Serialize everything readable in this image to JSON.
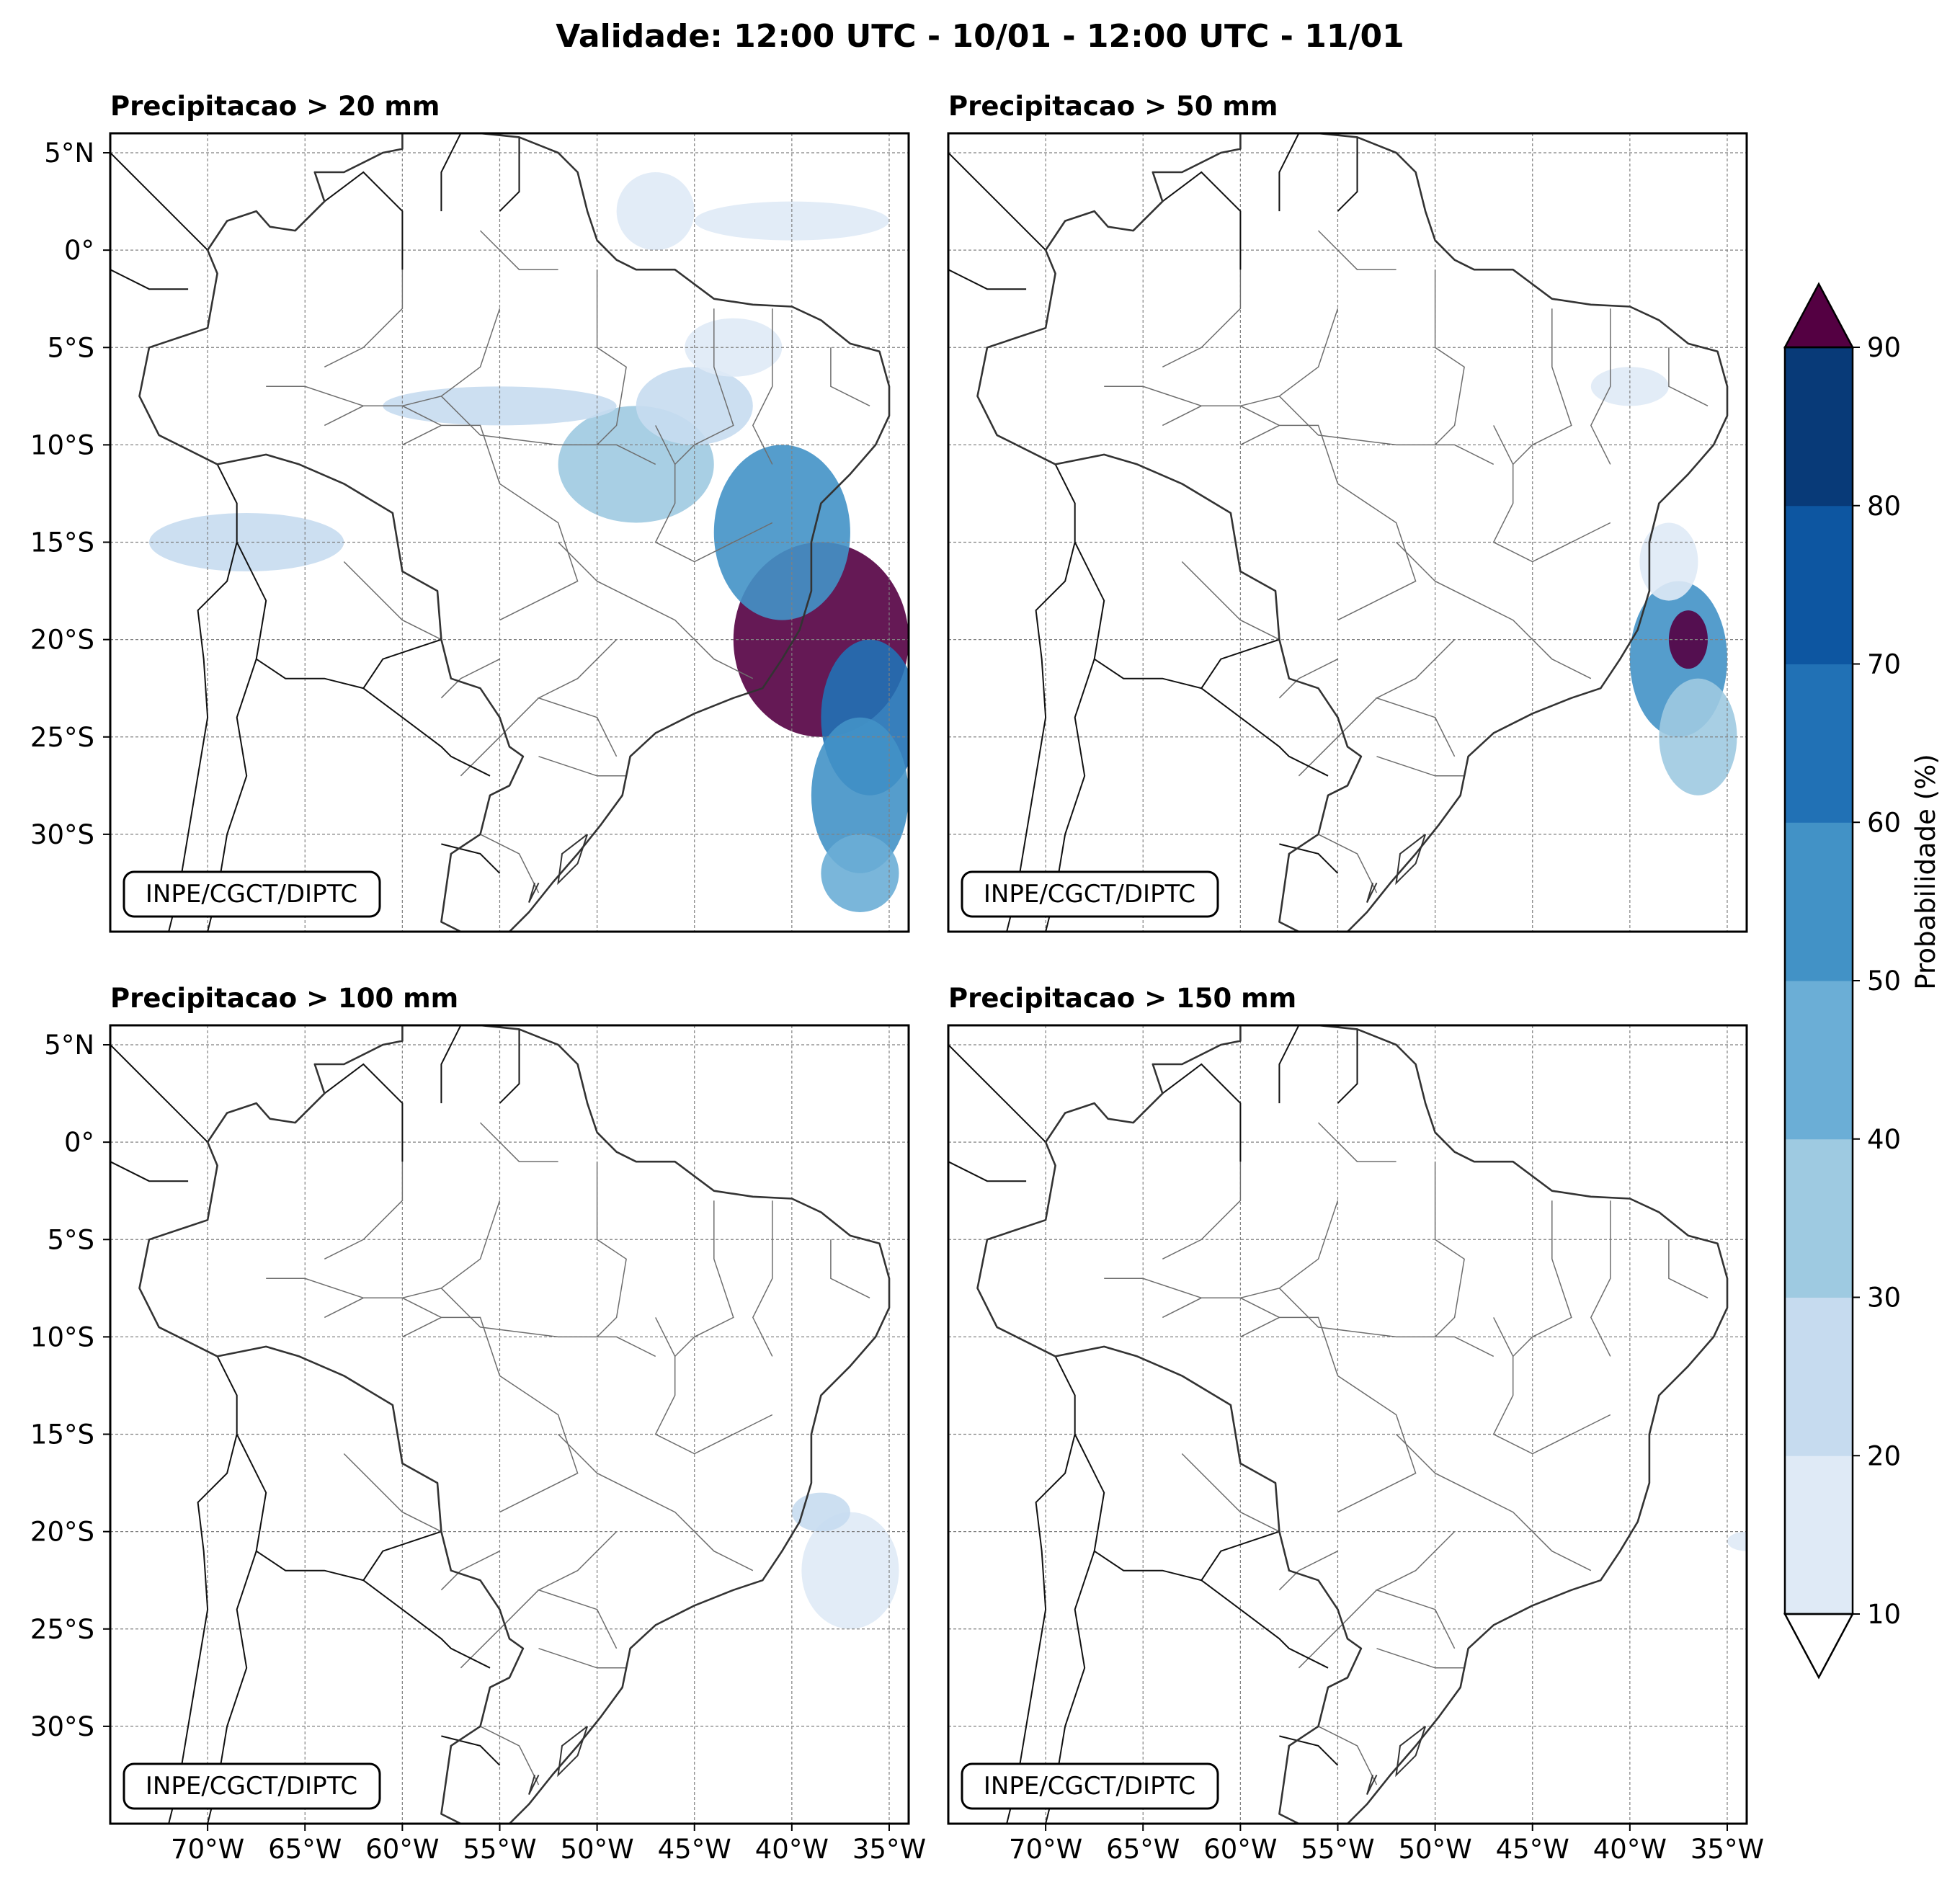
{
  "figure": {
    "title": "Validade: 12:00 UTC - 10/01 - 12:00 UTC - 11/01",
    "credit": "INPE/CGCT/DIPTC"
  },
  "panels": [
    {
      "title": "Precipitacao > 20 mm",
      "blobs": [
        {
          "lon": -38.5,
          "lat": -20,
          "rx": 4.5,
          "ry": 5,
          "level": 6
        },
        {
          "lon": -36,
          "lat": -24,
          "rx": 2.5,
          "ry": 4,
          "level": 5
        },
        {
          "lon": -40.5,
          "lat": -14.5,
          "rx": 3.5,
          "ry": 4.5,
          "level": 4
        },
        {
          "lon": -36.5,
          "lat": -28,
          "rx": 2.5,
          "ry": 4,
          "level": 4
        },
        {
          "lon": -36.5,
          "lat": -32,
          "rx": 2,
          "ry": 2,
          "level": 3
        },
        {
          "lon": -48,
          "lat": -11,
          "rx": 4,
          "ry": 3,
          "level": 2
        },
        {
          "lon": -45,
          "lat": -8,
          "rx": 3,
          "ry": 2,
          "level": 1
        },
        {
          "lon": -68,
          "lat": -15,
          "rx": 5,
          "ry": 1.5,
          "level": 1
        },
        {
          "lon": -55,
          "lat": -8,
          "rx": 6,
          "ry": 1,
          "level": 1
        },
        {
          "lon": -40,
          "lat": 1.5,
          "rx": 5,
          "ry": 1,
          "level": 0
        },
        {
          "lon": -47,
          "lat": 2,
          "rx": 2,
          "ry": 2,
          "level": 0
        },
        {
          "lon": -43,
          "lat": -5,
          "rx": 2.5,
          "ry": 1.5,
          "level": 0
        }
      ]
    },
    {
      "title": "Precipitacao > 50 mm",
      "blobs": [
        {
          "lon": -37.5,
          "lat": -21,
          "rx": 2.5,
          "ry": 4,
          "level": 4
        },
        {
          "lon": -36.5,
          "lat": -25,
          "rx": 2,
          "ry": 3,
          "level": 2
        },
        {
          "lon": -37,
          "lat": -20,
          "rx": 1,
          "ry": 1.5,
          "level": 6
        },
        {
          "lon": -38,
          "lat": -16,
          "rx": 1.5,
          "ry": 2,
          "level": 0
        },
        {
          "lon": -40,
          "lat": -7,
          "rx": 2,
          "ry": 1,
          "level": 0
        }
      ]
    },
    {
      "title": "Precipitacao > 100 mm",
      "blobs": [
        {
          "lon": -37,
          "lat": -22,
          "rx": 2.5,
          "ry": 3,
          "level": 0
        },
        {
          "lon": -38.5,
          "lat": -19,
          "rx": 1.5,
          "ry": 1,
          "level": 1
        }
      ]
    },
    {
      "title": "Precipitacao > 150 mm",
      "blobs": [
        {
          "lon": -34,
          "lat": -20.5,
          "rx": 1,
          "ry": 0.5,
          "level": 0
        }
      ]
    }
  ],
  "map": {
    "lon_range": [
      -75,
      -34
    ],
    "lat_range": [
      -35,
      6
    ],
    "lon_ticks": [
      -70,
      -65,
      -60,
      -55,
      -50,
      -45,
      -40,
      -35
    ],
    "lat_ticks": [
      5,
      0,
      -5,
      -10,
      -15,
      -20,
      -25,
      -30
    ],
    "lon_tick_labels": [
      "70°W",
      "65°W",
      "60°W",
      "55°W",
      "50°W",
      "45°W",
      "40°W",
      "35°W"
    ],
    "lat_tick_labels": [
      "5°N",
      "0°",
      "5°S",
      "10°S",
      "15°S",
      "20°S",
      "25°S",
      "30°S"
    ],
    "coast": [
      [
        -60,
        8.5
      ],
      [
        -58,
        6.8
      ],
      [
        -56,
        6
      ],
      [
        -54,
        5.8
      ],
      [
        -52,
        5
      ],
      [
        -51,
        4
      ],
      [
        -50.5,
        2
      ],
      [
        -50,
        0.5
      ],
      [
        -49,
        -0.5
      ],
      [
        -48,
        -1
      ],
      [
        -46,
        -1
      ],
      [
        -44,
        -2.5
      ],
      [
        -42,
        -2.8
      ],
      [
        -40,
        -2.9
      ],
      [
        -38.5,
        -3.6
      ],
      [
        -37,
        -4.8
      ],
      [
        -35.5,
        -5.2
      ],
      [
        -35,
        -7
      ],
      [
        -35,
        -8.5
      ],
      [
        -35.7,
        -10
      ],
      [
        -37,
        -11.5
      ],
      [
        -38.5,
        -13
      ],
      [
        -39,
        -15
      ],
      [
        -39,
        -17.5
      ],
      [
        -39.6,
        -19.5
      ],
      [
        -40.5,
        -21
      ],
      [
        -41.5,
        -22.5
      ],
      [
        -43,
        -23
      ],
      [
        -45,
        -23.8
      ],
      [
        -47,
        -24.8
      ],
      [
        -48.3,
        -26
      ],
      [
        -48.7,
        -28
      ],
      [
        -49.8,
        -29.5
      ],
      [
        -51,
        -31
      ],
      [
        -52.3,
        -32.5
      ],
      [
        -53.5,
        -34
      ],
      [
        -54.5,
        -35
      ],
      [
        -57,
        -35
      ],
      [
        -58,
        -34.5
      ],
      [
        -57.5,
        -31
      ],
      [
        -56,
        -30
      ],
      [
        -55.5,
        -28
      ],
      [
        -54.5,
        -27.5
      ],
      [
        -53.8,
        -26
      ],
      [
        -54.5,
        -25.5
      ],
      [
        -55,
        -24
      ],
      [
        -56,
        -22.5
      ],
      [
        -57.5,
        -22
      ],
      [
        -58,
        -20
      ],
      [
        -58.2,
        -17.5
      ],
      [
        -60,
        -16.5
      ],
      [
        -60.5,
        -13.5
      ],
      [
        -63,
        -12
      ],
      [
        -65.3,
        -11
      ],
      [
        -67,
        -10.5
      ],
      [
        -69.5,
        -11
      ],
      [
        -72.5,
        -9.5
      ],
      [
        -73.5,
        -7.5
      ],
      [
        -73,
        -5
      ],
      [
        -70,
        -4
      ],
      [
        -69.5,
        -1.2
      ],
      [
        -70,
        0
      ],
      [
        -69,
        1.5
      ],
      [
        -67.5,
        2
      ],
      [
        -66.8,
        1.2
      ],
      [
        -65.5,
        1
      ],
      [
        -64,
        2.5
      ],
      [
        -64.5,
        4
      ],
      [
        -63,
        4
      ],
      [
        -61,
        5
      ],
      [
        -60,
        5.2
      ],
      [
        -60,
        8.5
      ]
    ],
    "states": [
      [
        [
          -58,
          -7.5
        ],
        [
          -56,
          -9.5
        ],
        [
          -52,
          -10
        ],
        [
          -49,
          -10
        ],
        [
          -47,
          -11
        ]
      ],
      [
        [
          -60,
          -10
        ],
        [
          -58,
          -9
        ],
        [
          -56,
          -9
        ],
        [
          -55,
          -12
        ],
        [
          -52,
          -14
        ],
        [
          -51,
          -17
        ],
        [
          -53,
          -18
        ],
        [
          -55,
          -19
        ]
      ],
      [
        [
          -52,
          -15
        ],
        [
          -50,
          -17
        ],
        [
          -48,
          -18
        ],
        [
          -46,
          -19
        ],
        [
          -44,
          -21
        ],
        [
          -42,
          -22
        ]
      ],
      [
        [
          -47,
          -9
        ],
        [
          -46,
          -11
        ],
        [
          -46,
          -13
        ],
        [
          -47,
          -15
        ],
        [
          -45,
          -16
        ],
        [
          -43,
          -15
        ],
        [
          -41,
          -14
        ]
      ],
      [
        [
          -44,
          -3
        ],
        [
          -44,
          -6
        ],
        [
          -43,
          -9
        ],
        [
          -45,
          -10
        ],
        [
          -46,
          -11
        ]
      ],
      [
        [
          -41,
          -3
        ],
        [
          -41,
          -7
        ],
        [
          -42,
          -9
        ],
        [
          -41,
          -11
        ]
      ],
      [
        [
          -38,
          -5
        ],
        [
          -38,
          -7
        ],
        [
          -36,
          -8
        ]
      ],
      [
        [
          -49,
          -20
        ],
        [
          -51,
          -22
        ],
        [
          -53,
          -23
        ],
        [
          -50,
          -24
        ],
        [
          -49,
          -26
        ]
      ],
      [
        [
          -53,
          -26
        ],
        [
          -50,
          -27
        ],
        [
          -48.5,
          -27
        ]
      ],
      [
        [
          -50,
          -1
        ],
        [
          -50,
          -5
        ],
        [
          -48.5,
          -6
        ],
        [
          -49,
          -9
        ],
        [
          -50,
          -10
        ]
      ],
      [
        [
          -55,
          -3
        ],
        [
          -56,
          -6
        ],
        [
          -58,
          -7.5
        ],
        [
          -60,
          -8
        ]
      ],
      [
        [
          -64,
          -9
        ],
        [
          -62,
          -8
        ],
        [
          -60,
          -8
        ],
        [
          -58,
          -9
        ]
      ],
      [
        [
          -67,
          -7
        ],
        [
          -65,
          -7
        ],
        [
          -62,
          -8
        ]
      ],
      [
        [
          -60,
          -1
        ],
        [
          -60,
          -3
        ],
        [
          -62,
          -5
        ],
        [
          -64,
          -6
        ]
      ],
      [
        [
          -56,
          1
        ],
        [
          -54,
          -1
        ],
        [
          -52,
          -1
        ]
      ],
      [
        [
          -63,
          -16
        ],
        [
          -60,
          -19
        ],
        [
          -58,
          -20
        ]
      ],
      [
        [
          -55,
          -21
        ],
        [
          -57,
          -22
        ],
        [
          -58,
          -23
        ]
      ],
      [
        [
          -56,
          -30
        ],
        [
          -54,
          -31
        ],
        [
          -53,
          -33
        ]
      ],
      [
        [
          -53,
          -23
        ],
        [
          -54,
          -24
        ],
        [
          -55,
          -25
        ],
        [
          -57,
          -27
        ]
      ]
    ],
    "countries": [
      [
        [
          -70,
          0
        ],
        [
          -72,
          2
        ],
        [
          -74,
          4
        ],
        [
          -75,
          5
        ]
      ],
      [
        [
          -75,
          -1
        ],
        [
          -73,
          -2
        ],
        [
          -71,
          -2
        ]
      ],
      [
        [
          -69.5,
          -11
        ],
        [
          -68.5,
          -13
        ],
        [
          -68.5,
          -15
        ],
        [
          -69,
          -17
        ],
        [
          -70.5,
          -18.5
        ],
        [
          -70.2,
          -21
        ],
        [
          -70,
          -24
        ],
        [
          -70.5,
          -27
        ],
        [
          -71,
          -30
        ],
        [
          -71.5,
          -33
        ],
        [
          -72,
          -35
        ]
      ],
      [
        [
          -68.5,
          -15
        ],
        [
          -67,
          -18
        ],
        [
          -67.5,
          -21
        ],
        [
          -66,
          -22
        ],
        [
          -64,
          -22
        ],
        [
          -62,
          -22.5
        ],
        [
          -61,
          -21
        ],
        [
          -59.5,
          -20.5
        ],
        [
          -58,
          -20
        ]
      ],
      [
        [
          -62,
          -22.5
        ],
        [
          -60,
          -24
        ],
        [
          -58,
          -25.5
        ],
        [
          -57.5,
          -26
        ],
        [
          -55.5,
          -27
        ]
      ],
      [
        [
          -67.5,
          -21
        ],
        [
          -68.5,
          -24
        ],
        [
          -68,
          -27
        ],
        [
          -69,
          -30
        ],
        [
          -69.5,
          -33
        ],
        [
          -70,
          -35
        ]
      ],
      [
        [
          -64,
          2.5
        ],
        [
          -62,
          4
        ],
        [
          -60,
          2
        ],
        [
          -60,
          -1
        ]
      ],
      [
        [
          -57,
          6
        ],
        [
          -58,
          4
        ],
        [
          -58,
          2
        ]
      ],
      [
        [
          -54,
          5.8
        ],
        [
          -54,
          3
        ],
        [
          -55,
          2
        ]
      ],
      [
        [
          -58,
          -30.5
        ],
        [
          -56,
          -31
        ],
        [
          -55,
          -32
        ]
      ]
    ],
    "lakes": [
      [
        [
          -50.5,
          -30
        ],
        [
          -51,
          -31.5
        ],
        [
          -52,
          -32.5
        ],
        [
          -51.8,
          -31
        ],
        [
          -50.5,
          -30
        ]
      ],
      [
        [
          -53,
          -32.5
        ],
        [
          -53.5,
          -33.5
        ],
        [
          -53.2,
          -32.5
        ]
      ]
    ]
  },
  "colorbar": {
    "label": "Probabilidade (%)",
    "ticks": [
      10,
      20,
      30,
      40,
      50,
      60,
      70,
      80,
      90
    ],
    "tick_labels": [
      "10",
      "20",
      "30",
      "40",
      "50",
      "60",
      "70",
      "80",
      "90"
    ],
    "colors": [
      "#dfeaf6",
      "#c6dbef",
      "#9ecae1",
      "#6baed6",
      "#4292c6",
      "#2171b5",
      "#0d56a1",
      "#083a78"
    ],
    "over_color": "#540042",
    "under_color": "#ffffff"
  },
  "level_colors": [
    "#dfeaf6",
    "#c6dbef",
    "#9ecae1",
    "#6baed6",
    "#4292c6",
    "#2171b5",
    "#540042"
  ]
}
